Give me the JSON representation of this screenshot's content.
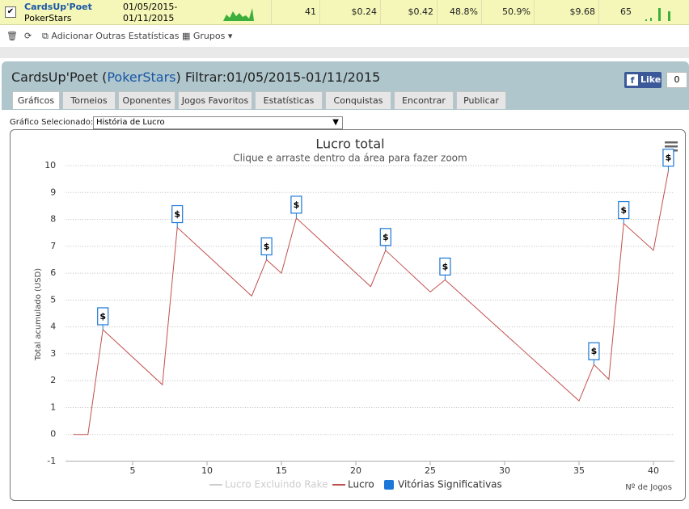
{
  "summary_row": {
    "player": "CardsUp'Poet",
    "site": "PokerStars",
    "date_from": "01/05/2015-",
    "date_to": "01/11/2015",
    "cells": [
      "41",
      "$0.24",
      "$0.42",
      "48.8%",
      "50.9%",
      "$9.68",
      "65"
    ]
  },
  "toolbar": {
    "add_stats": "Adicionar Outras Estatísticas",
    "groups": "Grupos"
  },
  "header": {
    "player": "CardsUp'Poet (",
    "site": "PokerStars",
    "filter": ") Filtrar:01/05/2015-01/11/2015",
    "like": "Like",
    "like_count": "0"
  },
  "tabs": [
    "Gráficos",
    "Torneios",
    "Oponentes",
    "Jogos Favoritos",
    "Estatísticas",
    "Conquistas",
    "Encontrar",
    "Publicar"
  ],
  "selector": {
    "label": "Gráfico Selecionado:",
    "value": "História de Lucro"
  },
  "chart_data": {
    "type": "line",
    "title": "Lucro total",
    "subtitle": "Clique e arraste dentro da área para fazer zoom",
    "x_label": "Nº de Jogos",
    "y_label": "Total acumulado (USD)",
    "xlim": [
      0.5,
      41.4
    ],
    "xticks": [
      5,
      10,
      15,
      20,
      25,
      30,
      35,
      40
    ],
    "ylim": [
      -1,
      10
    ],
    "yticks": [
      -1,
      0,
      1,
      2,
      3,
      4,
      5,
      6,
      7,
      8,
      9,
      10
    ],
    "grid": true,
    "flag_label": "$",
    "series": [
      {
        "name": "Lucro Excluindo Rake",
        "color": "#cccccc",
        "visible": false
      },
      {
        "name": "Lucro",
        "color": "#c0504d",
        "x": [
          1,
          2,
          3,
          7,
          8,
          13,
          14,
          15,
          16,
          21,
          22,
          25,
          26,
          35,
          36,
          37,
          38,
          40,
          41
        ],
        "values": [
          0,
          0,
          3.9,
          1.85,
          7.7,
          5.15,
          6.5,
          6.0,
          8.05,
          5.5,
          6.85,
          5.3,
          5.75,
          1.25,
          2.6,
          2.05,
          7.85,
          6.85,
          9.8
        ]
      },
      {
        "name": "Vitórias Significativas",
        "color": "#1c77d6",
        "x": [
          3,
          8,
          14,
          16,
          22,
          26,
          36,
          38,
          41
        ],
        "values": [
          3.9,
          7.7,
          6.5,
          8.05,
          6.85,
          5.75,
          2.6,
          7.85,
          9.8
        ]
      }
    ]
  }
}
